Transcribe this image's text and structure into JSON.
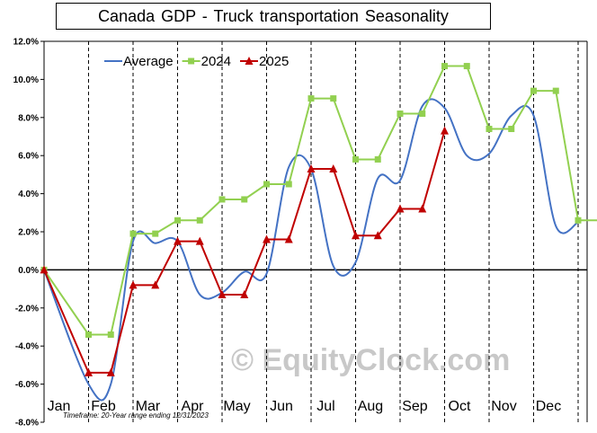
{
  "chart_data": {
    "type": "line",
    "title": "Canada  GDP - Truck transportation  Seasonality",
    "ylim": [
      -8,
      12
    ],
    "y_ticks": [
      "12.0%",
      "10.0%",
      "8.0%",
      "6.0%",
      "4.0%",
      "2.0%",
      "0.0%",
      "-2.0%",
      "-4.0%",
      "-6.0%",
      "-8.0%"
    ],
    "categories": [
      "Jan",
      "Feb",
      "Mar",
      "Apr",
      "May",
      "Jun",
      "Jul",
      "Aug",
      "Sep",
      "Oct",
      "Nov",
      "Dec"
    ],
    "grid": "vertical dashed lines between months",
    "legend_position": "top-left",
    "footnote": "Timeframe: 20-Year range ending 12/31/2023",
    "watermark": "© EquityClock.com",
    "series": [
      {
        "name": "Average",
        "color": "#4472c4",
        "style": "smooth",
        "points": [
          [
            0,
            0
          ],
          [
            1,
            -6.0
          ],
          [
            1.5,
            -6.0
          ],
          [
            2,
            1.5
          ],
          [
            2.5,
            1.4
          ],
          [
            3,
            1.5
          ],
          [
            3.5,
            -1.3
          ],
          [
            4,
            -1.2
          ],
          [
            4.5,
            -0.1
          ],
          [
            5,
            -0.2
          ],
          [
            5.5,
            5.4
          ],
          [
            6,
            5.3
          ],
          [
            6.5,
            0.2
          ],
          [
            7,
            0.4
          ],
          [
            7.5,
            4.8
          ],
          [
            8,
            4.7
          ],
          [
            8.5,
            8.6
          ],
          [
            9,
            8.5
          ],
          [
            9.5,
            6.0
          ],
          [
            10,
            6.1
          ],
          [
            10.5,
            8.1
          ],
          [
            11,
            8.1
          ],
          [
            11.5,
            2.3
          ],
          [
            12,
            2.5
          ]
        ]
      },
      {
        "name": "2024",
        "color": "#92d050",
        "marker": "square",
        "points": [
          [
            0,
            0
          ],
          [
            1,
            -3.4
          ],
          [
            1.5,
            -3.4
          ],
          [
            2,
            1.9
          ],
          [
            2.5,
            1.9
          ],
          [
            3,
            2.6
          ],
          [
            3.5,
            2.6
          ],
          [
            4,
            3.7
          ],
          [
            4.5,
            3.7
          ],
          [
            5,
            4.5
          ],
          [
            5.5,
            4.5
          ],
          [
            6,
            9.0
          ],
          [
            6.5,
            9.0
          ],
          [
            7,
            5.8
          ],
          [
            7.5,
            5.8
          ],
          [
            8,
            8.2
          ],
          [
            8.5,
            8.2
          ],
          [
            9,
            10.7
          ],
          [
            9.5,
            10.7
          ],
          [
            10,
            7.4
          ],
          [
            10.5,
            7.4
          ],
          [
            11,
            9.4
          ],
          [
            11.5,
            9.4
          ],
          [
            12,
            2.6
          ],
          [
            12.5,
            2.6
          ]
        ]
      },
      {
        "name": "2025",
        "color": "#c00000",
        "marker": "triangle",
        "points": [
          [
            0,
            0
          ],
          [
            1,
            -5.4
          ],
          [
            1.5,
            -5.4
          ],
          [
            2,
            -0.8
          ],
          [
            2.5,
            -0.8
          ],
          [
            3,
            1.5
          ],
          [
            3.5,
            1.5
          ],
          [
            4,
            -1.3
          ],
          [
            4.5,
            -1.3
          ],
          [
            5,
            1.6
          ],
          [
            5.5,
            1.6
          ],
          [
            6,
            5.3
          ],
          [
            6.5,
            5.3
          ],
          [
            7,
            1.8
          ],
          [
            7.5,
            1.8
          ],
          [
            8,
            3.2
          ],
          [
            8.5,
            3.2
          ],
          [
            9,
            7.3
          ]
        ]
      }
    ]
  }
}
